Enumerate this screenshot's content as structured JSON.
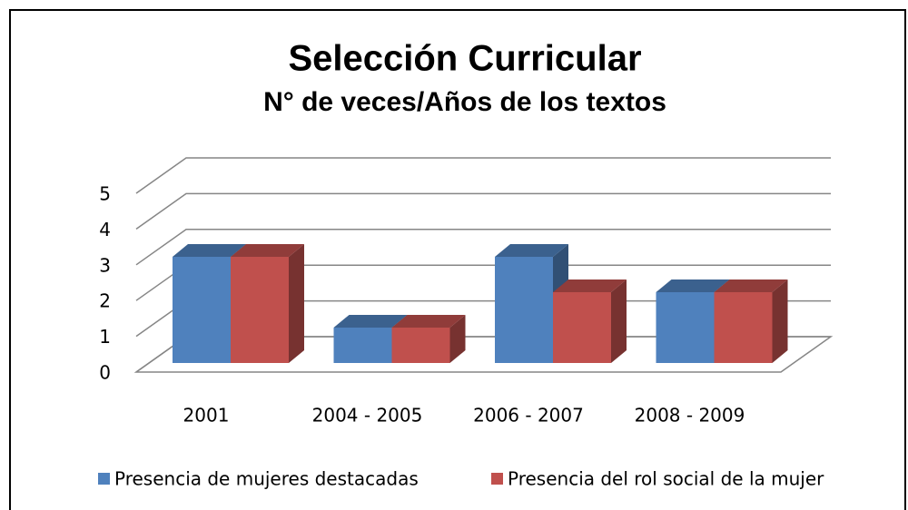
{
  "chart_data": {
    "type": "bar3d",
    "title": "Selección Curricular",
    "subtitle": "N° de veces/Años de los textos",
    "categories": [
      "2001",
      "2004 - 2005",
      "2006 - 2007",
      "2008 - 2009"
    ],
    "series": [
      {
        "name": "Presencia de mujeres destacadas",
        "color": "#4f81bd",
        "values": [
          3,
          1,
          3,
          2
        ]
      },
      {
        "name": "Presencia del rol social de la mujer",
        "color": "#c0504d",
        "values": [
          3,
          1,
          2,
          2
        ]
      }
    ],
    "ylim": [
      0,
      5
    ],
    "yticks": [
      0,
      1,
      2,
      3,
      4,
      5
    ],
    "grid": true,
    "legend": "bottom"
  }
}
